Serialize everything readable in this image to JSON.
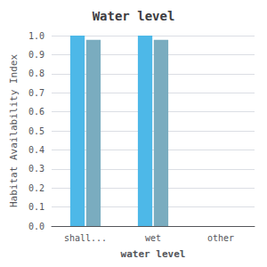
{
  "chart_data": {
    "type": "bar",
    "title": "Water level",
    "xlabel": "water level",
    "ylabel": "Habitat Availability Index",
    "categories": [
      "shall...",
      "wet",
      "other"
    ],
    "series": [
      {
        "color": "#4db8e8",
        "values": [
          1.0,
          1.0,
          0.0
        ]
      },
      {
        "color": "#7aacbf",
        "values": [
          0.978,
          0.978,
          0.0
        ]
      }
    ],
    "ylim": [
      0,
      1
    ],
    "yticks": [
      {
        "value": 0,
        "label": "0.0"
      },
      0.1,
      0.2,
      0.3,
      0.4,
      0.5,
      0.6,
      0.7,
      0.8,
      0.9,
      {
        "value": 1,
        "label": "1.0"
      }
    ],
    "grid": true
  }
}
